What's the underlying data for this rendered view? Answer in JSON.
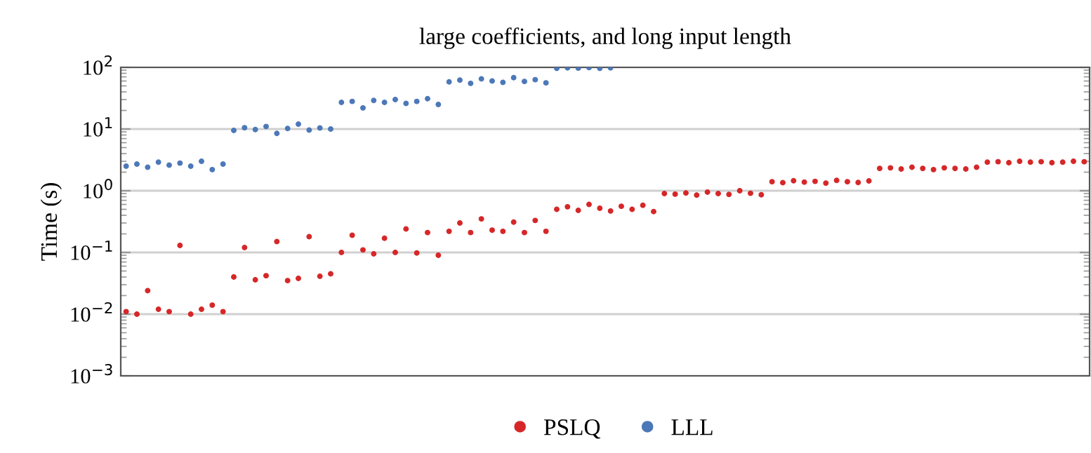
{
  "chart_data": {
    "type": "scatter",
    "title": "large coefficients, and long input length",
    "ylabel": "Time (s)",
    "categories": [
      null,
      null,
      null,
      null,
      null,
      null,
      null,
      null,
      null,
      null,
      null,
      null,
      null,
      null,
      null,
      null,
      null,
      null,
      null,
      null,
      null,
      null,
      null,
      null,
      null,
      null,
      null,
      null,
      null,
      null,
      null,
      null,
      null,
      null,
      null,
      null,
      null,
      null,
      null,
      null,
      null,
      null,
      null,
      null,
      null,
      null,
      null,
      null,
      null,
      null,
      null,
      null,
      null,
      null,
      null,
      null,
      null,
      null,
      null,
      null,
      null,
      null,
      null,
      null,
      null,
      null,
      null,
      null,
      null,
      null,
      null,
      null,
      null,
      null,
      null,
      null,
      null,
      null,
      null,
      null,
      null,
      null,
      null,
      null,
      null,
      null,
      null,
      null,
      null,
      null
    ],
    "series": [
      {
        "name": "PSLQ",
        "color": "#d62728",
        "values": [
          0.011,
          0.01,
          0.024,
          0.012,
          0.011,
          0.13,
          0.01,
          0.012,
          0.014,
          0.011,
          0.04,
          0.12,
          0.036,
          0.042,
          0.15,
          0.035,
          0.038,
          0.18,
          0.041,
          0.045,
          0.1,
          0.19,
          0.11,
          0.095,
          0.17,
          0.1,
          0.24,
          0.098,
          0.21,
          0.09,
          0.22,
          0.3,
          0.21,
          0.35,
          0.23,
          0.22,
          0.31,
          0.21,
          0.33,
          0.22,
          0.5,
          0.55,
          0.48,
          0.6,
          0.52,
          0.47,
          0.56,
          0.5,
          0.58,
          0.46,
          0.9,
          0.88,
          0.92,
          0.85,
          0.95,
          0.9,
          0.87,
          1.0,
          0.91,
          0.86,
          1.4,
          1.35,
          1.45,
          1.38,
          1.42,
          1.33,
          1.47,
          1.4,
          1.36,
          1.44,
          2.3,
          2.35,
          2.25,
          2.4,
          2.3,
          2.2,
          2.35,
          2.3,
          2.25,
          2.4,
          2.9,
          2.95,
          2.85,
          3.0,
          2.9,
          2.95,
          2.85,
          2.9,
          3.0,
          2.95
        ]
      },
      {
        "name": "LLL",
        "color": "#4c78b8",
        "values": [
          2.5,
          2.7,
          2.4,
          2.9,
          2.6,
          2.8,
          2.5,
          3.0,
          2.2,
          2.7,
          9.5,
          10.5,
          9.8,
          11,
          8.5,
          10.2,
          12,
          9.6,
          10.4,
          10,
          27,
          28,
          22,
          29,
          27,
          30,
          26,
          28,
          31,
          25,
          58,
          62,
          55,
          65,
          60,
          57,
          68,
          59,
          63,
          56,
          96,
          98,
          97,
          99,
          96,
          98,
          null,
          null,
          null,
          null,
          null,
          null,
          null,
          null,
          null,
          null,
          null,
          null,
          null,
          null,
          null,
          null,
          null,
          null,
          null,
          null,
          null,
          null,
          null,
          null,
          null,
          null,
          null,
          null,
          null,
          null,
          null,
          null,
          null,
          null,
          null,
          null,
          null,
          null,
          null,
          null,
          null,
          null,
          null,
          null
        ]
      }
    ],
    "log": "y",
    "ylim": [
      0.001,
      100
    ],
    "yticks": [
      {
        "value": 0.001,
        "label": "10$^{−3}$"
      },
      {
        "value": 0.01,
        "label": "10$^{−2}$"
      },
      {
        "value": 0.1,
        "label": "10$^{−1}$"
      },
      {
        "value": 1,
        "label": "10$^{0}$"
      },
      {
        "value": 10,
        "label": "10$^{1}$"
      },
      {
        "value": 100,
        "label": "10$^{2}$"
      }
    ],
    "grid": "y",
    "legend": "bottom",
    "marker": "circle"
  }
}
